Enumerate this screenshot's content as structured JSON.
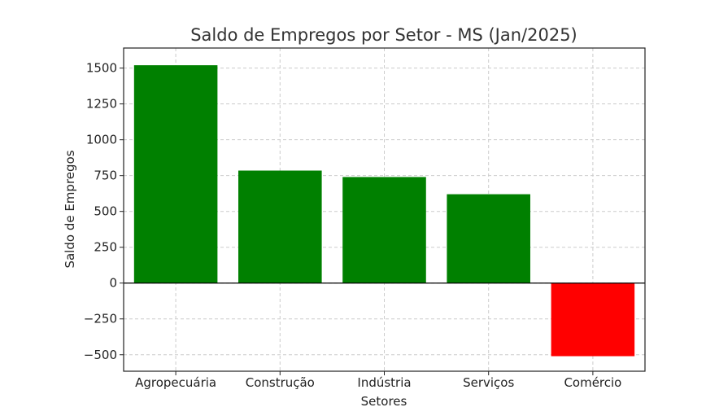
{
  "chart_data": {
    "type": "bar",
    "title": "Saldo de Empregos por Setor - MS (Jan/2025)",
    "xlabel": "Setores",
    "ylabel": "Saldo de Empregos",
    "categories": [
      "Agropecuária",
      "Construção",
      "Indústria",
      "Serviços",
      "Comércio"
    ],
    "values": [
      1520,
      785,
      740,
      620,
      -510
    ],
    "colors": [
      "#008000",
      "#008000",
      "#008000",
      "#008000",
      "#ff0000"
    ],
    "ylim": [
      -615,
      1640
    ],
    "yticks": [
      -500,
      -250,
      0,
      250,
      500,
      750,
      1000,
      1250,
      1500
    ],
    "ytick_labels": [
      "−500",
      "−250",
      "0",
      "250",
      "500",
      "750",
      "1000",
      "1250",
      "1500"
    ],
    "grid": true,
    "zero_line": true
  }
}
